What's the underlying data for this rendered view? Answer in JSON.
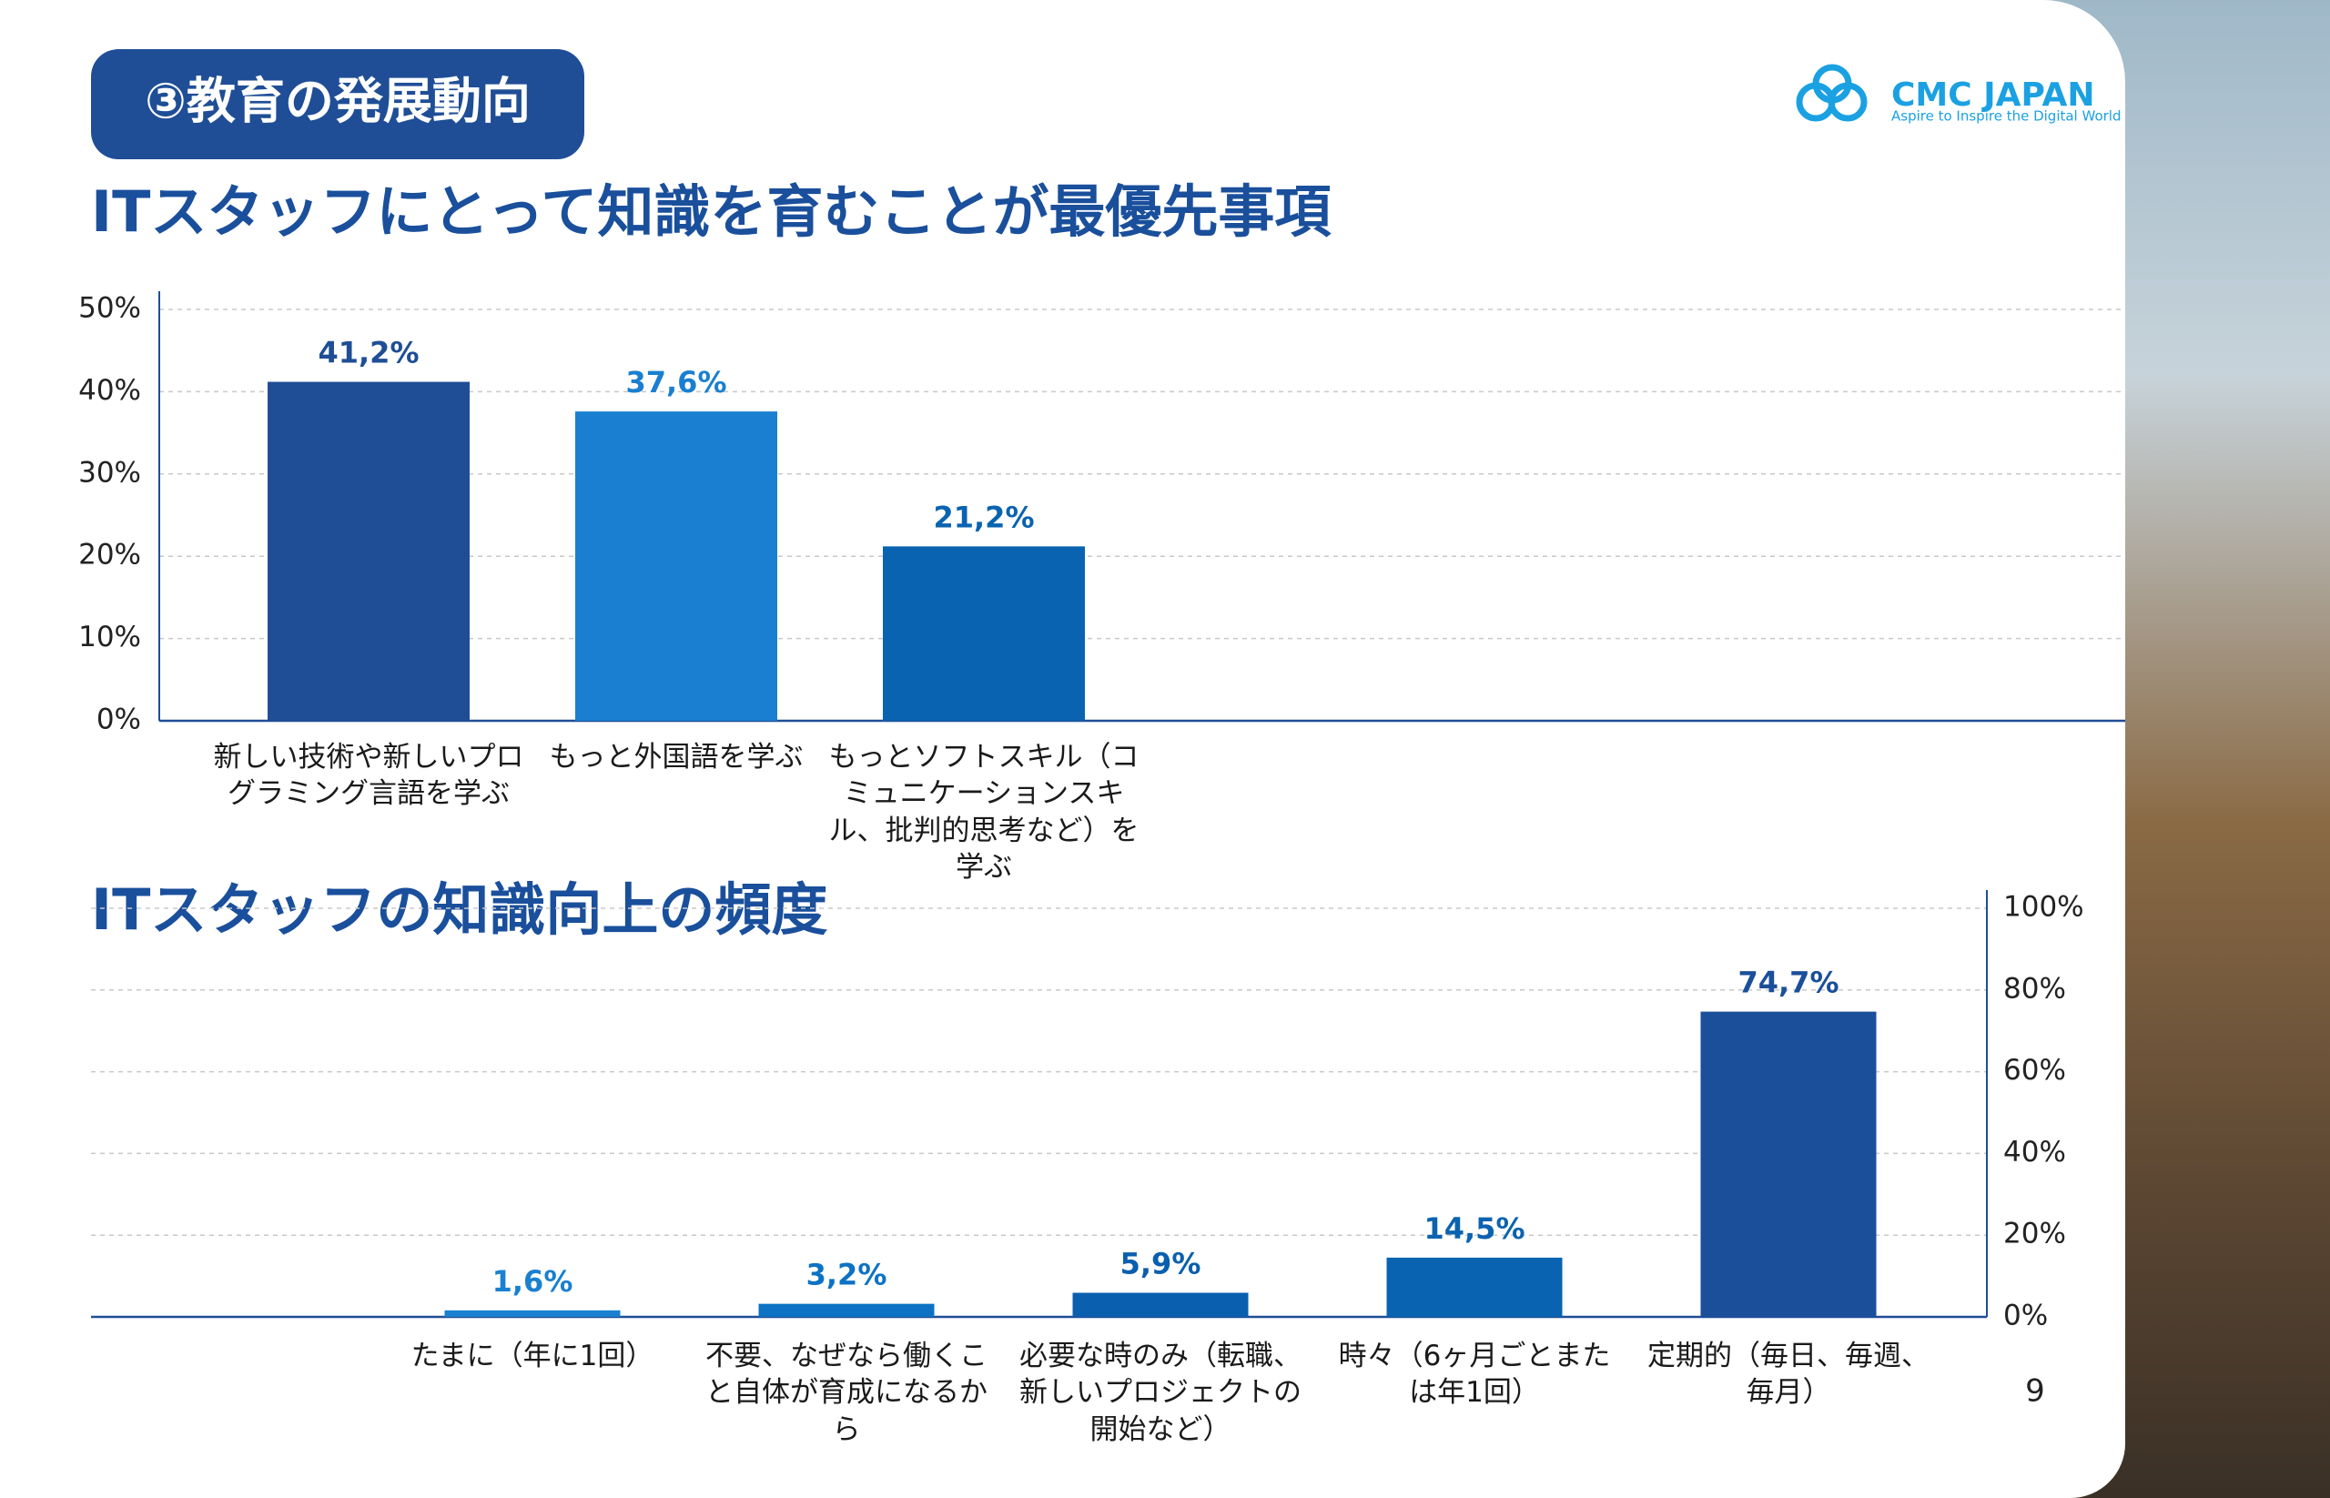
{
  "header": {
    "badge": "③教育の発展動向",
    "logo": "CMC JAPAN",
    "tagline": "Aspire to Inspire the Digital World",
    "page_number": "9"
  },
  "chart_data": [
    {
      "type": "bar",
      "title": "ITスタッフにとって知識を育むことが最優先事項",
      "categories": [
        "新しい技術や新しいプログラミング言語を学ぶ",
        "もっと外国語を学ぶ",
        "もっとソフトスキル（コミュニケーションスキル、批判的思考など）を学ぶ"
      ],
      "values": [
        41.2,
        37.6,
        21.2
      ],
      "value_labels": [
        "41,2%",
        "37,6%",
        "21,2%"
      ],
      "colors": [
        "#1f4e96",
        "#1a7fd0",
        "#0a63b0"
      ],
      "ylim": [
        0,
        50
      ],
      "yticks": [
        {
          "value": 0,
          "label": "0%"
        },
        {
          "value": 10,
          "label": "10%"
        },
        {
          "value": 20,
          "label": "20%"
        },
        {
          "value": 30,
          "label": "30%"
        },
        {
          "value": 40,
          "label": "40%"
        },
        {
          "value": 50,
          "label": "50%"
        }
      ],
      "grid": true,
      "axis_side": "left"
    },
    {
      "type": "bar",
      "title": "ITスタッフの知識向上の頻度",
      "categories": [
        "たまに（年に1回）",
        "不要、なぜなら働くこと自体が育成になるから",
        "必要な時のみ（転職、新しいプロジェクトの開始など）",
        "時々（6ヶ月ごとまたは年1回）",
        "定期的（毎日、毎週、毎月）"
      ],
      "values": [
        1.6,
        3.2,
        5.9,
        14.5,
        74.7
      ],
      "value_labels": [
        "1,6%",
        "3,2%",
        "5,9%",
        "14,5%",
        "74,7%"
      ],
      "colors": [
        "#1a80cf",
        "#0d72c4",
        "#0a5fae",
        "#0a63b0",
        "#1b4f9a"
      ],
      "ylim": [
        0,
        100
      ],
      "yticks": [
        {
          "value": 0,
          "label": "0%"
        },
        {
          "value": 20,
          "label": "20%"
        },
        {
          "value": 40,
          "label": "40%"
        },
        {
          "value": 60,
          "label": "60%"
        },
        {
          "value": 80,
          "label": "80%"
        },
        {
          "value": 100,
          "label": "100%"
        }
      ],
      "grid": true,
      "axis_side": "right"
    }
  ]
}
